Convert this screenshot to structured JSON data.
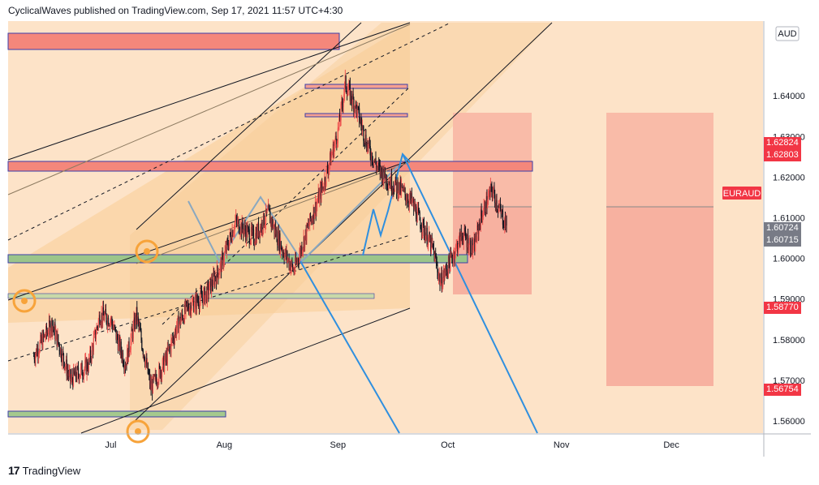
{
  "header": {
    "text": "CyclicalWaves published on TradingView.com, Sep 17, 2021 11:57 UTC+4:30"
  },
  "footer": {
    "brand": "TradingView",
    "logo": "tradingview-logo"
  },
  "currency": "AUD",
  "symbol_tag": "EURAUD",
  "colors": {
    "up": "#ef5350",
    "down": "#131722",
    "channel_fill": "#f5c27a",
    "zone_red": "#f48d7f",
    "zone_green": "#a5c98d",
    "forecast_red": "#f9b0a3",
    "projection_blue": "#2f8fdf",
    "circle_orange": "#f7a33a"
  },
  "price_tags": [
    {
      "label": "1.62824",
      "bg": "#f23645"
    },
    {
      "label": "1.62803",
      "bg": "#f23645"
    },
    {
      "label": "1.60724",
      "bg": "#787b86"
    },
    {
      "label": "1.60715",
      "bg": "#787b86"
    },
    {
      "label": "1.58770",
      "bg": "#f23645"
    },
    {
      "label": "1.56754",
      "bg": "#f23645"
    }
  ],
  "chart_data": {
    "type": "candlestick",
    "y_axis": {
      "ticks": [
        "1.64000",
        "1.63000",
        "1.62000",
        "1.61000",
        "1.60000",
        "1.59000",
        "1.58000",
        "1.57000",
        "1.56000"
      ],
      "range": [
        1.5572,
        1.658
      ]
    },
    "x_axis": {
      "ticks": [
        "Jul",
        "Aug",
        "Sep",
        "Oct",
        "Nov",
        "Dec"
      ]
    },
    "price_path": [
      [
        "2021-06-10",
        1.576
      ],
      [
        "2021-06-15",
        1.584
      ],
      [
        "2021-06-20",
        1.57
      ],
      [
        "2021-06-25",
        1.574
      ],
      [
        "2021-06-28",
        1.586
      ],
      [
        "2021-07-01",
        1.585
      ],
      [
        "2021-07-05",
        1.574
      ],
      [
        "2021-07-08",
        1.586
      ],
      [
        "2021-07-12",
        1.568
      ],
      [
        "2021-07-16",
        1.575
      ],
      [
        "2021-07-19",
        1.583
      ],
      [
        "2021-07-22",
        1.588
      ],
      [
        "2021-07-27",
        1.591
      ],
      [
        "2021-07-31",
        1.598
      ],
      [
        "2021-08-04",
        1.609
      ],
      [
        "2021-08-09",
        1.605
      ],
      [
        "2021-08-13",
        1.611
      ],
      [
        "2021-08-17",
        1.602
      ],
      [
        "2021-08-20",
        1.597
      ],
      [
        "2021-08-24",
        1.608
      ],
      [
        "2021-08-28",
        1.618
      ],
      [
        "2021-09-01",
        1.631
      ],
      [
        "2021-09-03",
        1.643
      ],
      [
        "2021-09-06",
        1.637
      ],
      [
        "2021-09-09",
        1.628
      ],
      [
        "2021-09-12",
        1.622
      ],
      [
        "2021-09-15",
        1.619
      ],
      [
        "2021-09-18",
        1.617
      ],
      [
        "2021-09-21",
        1.614
      ],
      [
        "2021-09-24",
        1.608
      ],
      [
        "2021-09-27",
        1.602
      ],
      [
        "2021-09-29",
        1.594
      ],
      [
        "2021-10-02",
        1.6
      ],
      [
        "2021-10-05",
        1.606
      ],
      [
        "2021-10-08",
        1.602
      ],
      [
        "2021-10-10",
        1.61
      ],
      [
        "2021-10-13",
        1.617
      ],
      [
        "2021-10-15",
        1.612
      ],
      [
        "2021-10-17",
        1.608
      ]
    ]
  }
}
